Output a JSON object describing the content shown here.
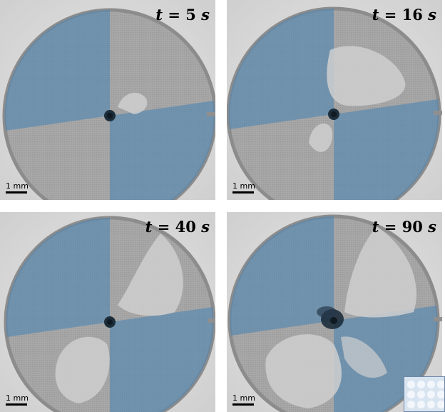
{
  "panels": [
    {
      "time_label": "t = 5 s",
      "t_var": "t",
      "t_eq": " = ",
      "t_value": "5",
      "t_unit": "s",
      "scale_label": "1 mm"
    },
    {
      "time_label": "t = 16 s",
      "t_var": "t",
      "t_eq": " = ",
      "t_value": "16",
      "t_unit": "s",
      "scale_label": "1 mm"
    },
    {
      "time_label": "t = 40 s",
      "t_var": "t",
      "t_eq": " = ",
      "t_value": "40",
      "t_unit": "s",
      "scale_label": "1 mm"
    },
    {
      "time_label": "t = 90 s",
      "t_var": "t",
      "t_eq": " = ",
      "t_value": "90",
      "t_unit": "s",
      "scale_label": "1 mm"
    }
  ],
  "colors": {
    "background": "#dcdcdc",
    "disk": "#a9a9a9",
    "blue_quadrant": "#5b87ab",
    "wetted_patch": "#c9c9c9",
    "center": "#1c2d3a"
  }
}
